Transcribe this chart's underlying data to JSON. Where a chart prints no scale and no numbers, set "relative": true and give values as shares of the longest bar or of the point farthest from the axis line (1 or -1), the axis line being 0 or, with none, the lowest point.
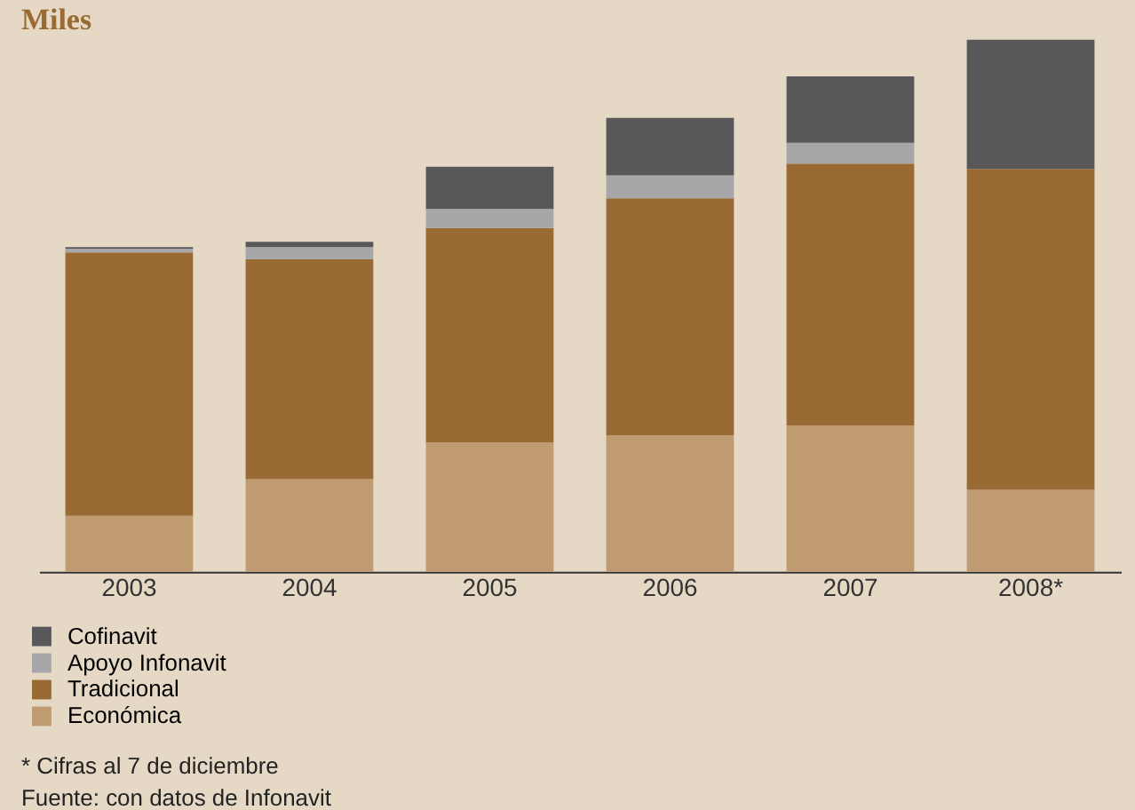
{
  "chart_data": {
    "type": "bar",
    "title": "Miles",
    "relative": true,
    "stacked": true,
    "legend": "bottom",
    "grid": false,
    "categories": [
      "2003",
      "2004",
      "2005",
      "2006",
      "2007",
      "2008*"
    ],
    "series": [
      {
        "name": "Económica",
        "color": "#c09a70",
        "values": [
          0.105,
          0.174,
          0.243,
          0.256,
          0.275,
          0.154
        ]
      },
      {
        "name": "Tradicional",
        "color": "#9a6a35",
        "values": [
          0.495,
          0.413,
          0.403,
          0.446,
          0.492,
          0.603
        ]
      },
      {
        "name": "Apoyo Infonavit",
        "color": "#a7a7a9",
        "values": [
          0.007,
          0.023,
          0.036,
          0.043,
          0.039,
          0
        ]
      },
      {
        "name": "Cofinavit",
        "color": "#58585a",
        "values": [
          0.003,
          0.01,
          0.079,
          0.108,
          0.125,
          0.243
        ]
      }
    ],
    "annotations": [
      "*          Cifras al 7 de diciembre",
      "Fuente:   con datos de Infonavit"
    ]
  }
}
